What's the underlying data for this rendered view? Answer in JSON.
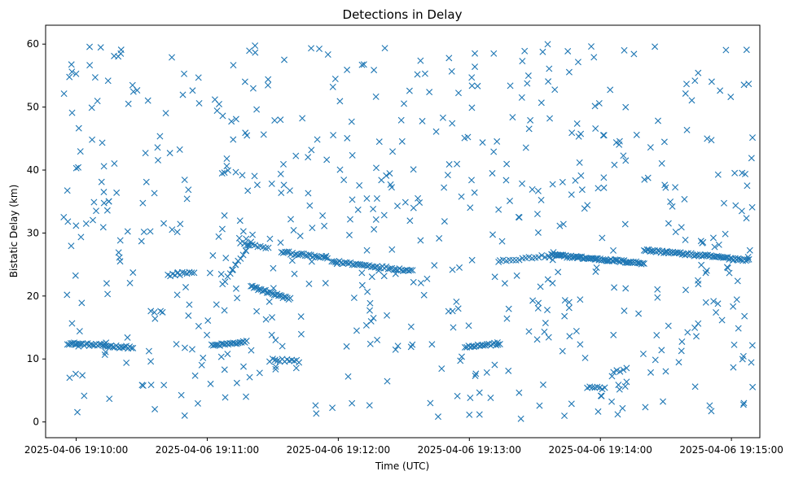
{
  "chart_data": {
    "type": "scatter",
    "title": "Detections in Delay",
    "xlabel": "Time (UTC)",
    "ylabel": "Bistatic Delay (km)",
    "marker": "x",
    "color": "#1f77b4",
    "grid": false,
    "xlim_seconds": [
      -14,
      313
    ],
    "ylim": [
      -2.5,
      63
    ],
    "x_ticks": [
      {
        "seconds": 0,
        "label": "2025-04-06 19:10:00"
      },
      {
        "seconds": 60,
        "label": "2025-04-06 19:11:00"
      },
      {
        "seconds": 120,
        "label": "2025-04-06 19:12:00"
      },
      {
        "seconds": 180,
        "label": "2025-04-06 19:13:00"
      },
      {
        "seconds": 240,
        "label": "2025-04-06 19:14:00"
      },
      {
        "seconds": 300,
        "label": "2025-04-06 19:15:00"
      }
    ],
    "y_ticks": [
      {
        "value": 0,
        "label": "0"
      },
      {
        "value": 10,
        "label": "10"
      },
      {
        "value": 20,
        "label": "20"
      },
      {
        "value": 30,
        "label": "30"
      },
      {
        "value": 40,
        "label": "40"
      },
      {
        "value": 50,
        "label": "50"
      },
      {
        "value": 60,
        "label": "60"
      }
    ],
    "tracks": [
      {
        "x0": -4,
        "x1": 26,
        "y0": 12.5,
        "y1": 11.8,
        "count": 40
      },
      {
        "x0": 62,
        "x1": 78,
        "y0": 12.1,
        "y1": 12.7,
        "count": 22
      },
      {
        "x0": 67,
        "x1": 80,
        "y0": 21.8,
        "y1": 28.5,
        "count": 12
      },
      {
        "x0": 77,
        "x1": 88,
        "y0": 28.3,
        "y1": 27.5,
        "count": 10
      },
      {
        "x0": 80,
        "x1": 98,
        "y0": 21.5,
        "y1": 19.5,
        "count": 28
      },
      {
        "x0": 94,
        "x1": 115,
        "y0": 27.0,
        "y1": 26.0,
        "count": 26
      },
      {
        "x0": 117,
        "x1": 154,
        "y0": 25.5,
        "y1": 24.0,
        "count": 44
      },
      {
        "x0": 178,
        "x1": 194,
        "y0": 12.0,
        "y1": 12.4,
        "count": 20
      },
      {
        "x0": 194,
        "x1": 222,
        "y0": 25.5,
        "y1": 26.6,
        "count": 20
      },
      {
        "x0": 218,
        "x1": 260,
        "y0": 26.5,
        "y1": 25.2,
        "count": 70
      },
      {
        "x0": 260,
        "x1": 308,
        "y0": 27.3,
        "y1": 25.7,
        "count": 70
      },
      {
        "x0": 42,
        "x1": 54,
        "y0": 23.3,
        "y1": 23.8,
        "count": 12
      },
      {
        "x0": 90,
        "x1": 102,
        "y0": 9.9,
        "y1": 9.6,
        "count": 12
      },
      {
        "x0": 246,
        "x1": 252,
        "y0": 8.0,
        "y1": 8.4,
        "count": 5
      },
      {
        "x0": 234,
        "x1": 242,
        "y0": 5.6,
        "y1": 5.3,
        "count": 8
      }
    ],
    "noise": {
      "count": 620,
      "x_range": [
        -6,
        310
      ],
      "y_range": [
        0.5,
        60
      ],
      "seed": 12345
    }
  }
}
